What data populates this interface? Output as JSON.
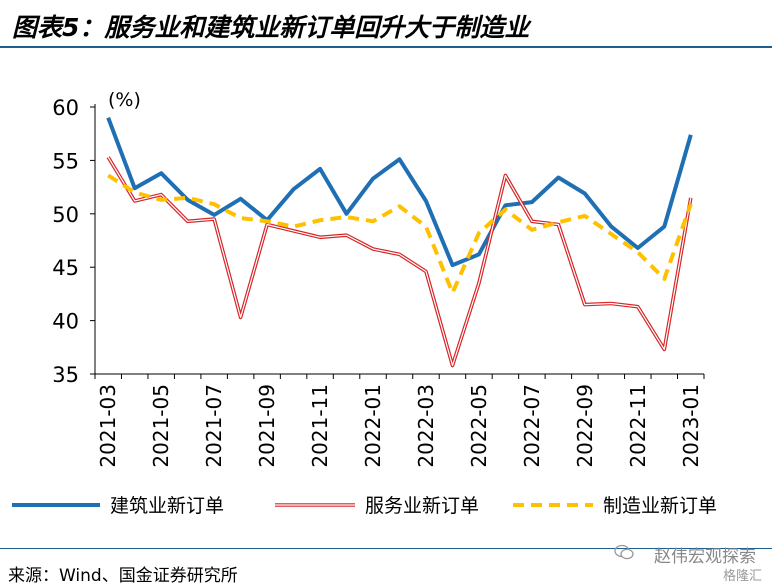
{
  "header": {
    "title": "图表5：服务业和建筑业新订单回升大于制造业"
  },
  "chart_data": {
    "type": "line",
    "title": "",
    "xlabel": "",
    "ylabel": "(%)",
    "ylim": [
      35,
      60
    ],
    "yticks": [
      "35",
      "40",
      "45",
      "50",
      "55",
      "60"
    ],
    "x": [
      "2021-03",
      "2021-04",
      "2021-05",
      "2021-06",
      "2021-07",
      "2021-08",
      "2021-09",
      "2021-10",
      "2021-11",
      "2021-12",
      "2022-01",
      "2022-02",
      "2022-03",
      "2022-04",
      "2022-05",
      "2022-06",
      "2022-07",
      "2022-08",
      "2022-09",
      "2022-10",
      "2022-11",
      "2022-12",
      "2023-01"
    ],
    "xtick_labels": [
      "2021-03",
      "2021-05",
      "2021-07",
      "2021-09",
      "2021-11",
      "2022-01",
      "2022-03",
      "2022-05",
      "2022-07",
      "2022-09",
      "2022-11",
      "2023-01"
    ],
    "series": [
      {
        "name": "建筑业新订单",
        "color": "#1f6fb5",
        "style": "solid",
        "values": [
          59.0,
          52.4,
          53.8,
          51.3,
          49.9,
          51.4,
          49.4,
          52.3,
          54.2,
          50.0,
          53.3,
          55.1,
          51.2,
          45.2,
          46.2,
          50.8,
          51.1,
          53.4,
          51.9,
          48.8,
          46.8,
          48.8,
          57.4
        ]
      },
      {
        "name": "服务业新订单",
        "color": "#d62728",
        "style": "double",
        "values": [
          55.3,
          51.2,
          51.8,
          49.3,
          49.5,
          40.3,
          49.0,
          48.4,
          47.8,
          48.0,
          46.7,
          46.2,
          44.6,
          35.8,
          43.5,
          53.6,
          49.3,
          49.0,
          41.5,
          41.6,
          41.3,
          37.3,
          51.5
        ]
      },
      {
        "name": "制造业新订单",
        "color": "#ffc000",
        "style": "dashed",
        "values": [
          53.6,
          52.0,
          51.3,
          51.5,
          50.9,
          49.6,
          49.3,
          48.8,
          49.4,
          49.7,
          49.3,
          50.7,
          48.8,
          42.6,
          48.2,
          50.4,
          48.5,
          49.2,
          49.8,
          48.1,
          46.4,
          43.9,
          50.9
        ]
      }
    ],
    "legend_position": "bottom",
    "grid": false
  },
  "footer": {
    "source": "来源：Wind、国金证券研究所"
  },
  "watermark": {
    "text": "赵伟宏观探索",
    "sub": "格隆汇"
  }
}
